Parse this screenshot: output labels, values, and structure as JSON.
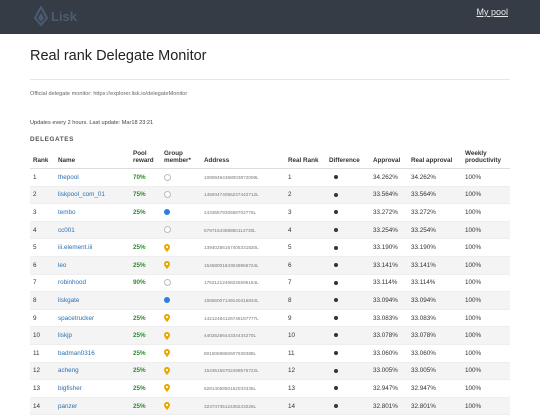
{
  "brand": {
    "name": "Lisk"
  },
  "nav": {
    "my_pool": "My pool"
  },
  "page": {
    "title": "Real rank Delegate Monitor",
    "official_note": "Official delegate monitor: https://explorer.lisk.io/delegateMonitor",
    "updates": "Updates every 2 hours. Last update: Mar18 23:21",
    "section": "DELEGATES"
  },
  "columns": {
    "rank": "Rank",
    "name": "Name",
    "pool_reward": "Pool reward",
    "group_member": "Group member*",
    "address": "Address",
    "real_rank": "Real Rank",
    "difference": "Difference",
    "approval": "Approval",
    "real_approval": "Real approval",
    "weekly_productivity": "Weekly productivity"
  },
  "delegates": [
    {
      "rank": "1",
      "name": "thepool",
      "reward": "70%",
      "group": "circle",
      "address": "10809494368003872009L",
      "real_rank": "1",
      "approval": "34.262%",
      "real_approval": "34.262%",
      "productivity": "100%"
    },
    {
      "rank": "2",
      "name": "liskpool_com_01",
      "reward": "75%",
      "group": "circle",
      "address": "14593474056247442712L",
      "real_rank": "2",
      "approval": "33.564%",
      "real_approval": "33.564%",
      "productivity": "100%"
    },
    {
      "rank": "3",
      "name": "tembo",
      "reward": "25%",
      "group": "dot",
      "address": "2433657930558702776L",
      "real_rank": "3",
      "approval": "33.272%",
      "real_approval": "33.272%",
      "productivity": "100%"
    },
    {
      "rank": "4",
      "name": "cc001",
      "reward": "",
      "group": "circle",
      "address": "6797154358850114730L",
      "real_rank": "4",
      "approval": "33.254%",
      "real_approval": "33.254%",
      "productivity": "100%"
    },
    {
      "rank": "5",
      "name": "iii.element.iii",
      "reward": "25%",
      "group": "pin",
      "address": "13940256167405331820L",
      "real_rank": "5",
      "approval": "33.190%",
      "real_approval": "33.190%",
      "productivity": "100%"
    },
    {
      "rank": "6",
      "name": "leo",
      "reward": "25%",
      "group": "pin",
      "address": "15458001843048965724L",
      "real_rank": "6",
      "approval": "33.141%",
      "real_approval": "33.141%",
      "productivity": "100%"
    },
    {
      "rank": "7",
      "name": "robinhood",
      "reward": "90%",
      "group": "circle",
      "address": "17621212458226596154L",
      "real_rank": "7",
      "approval": "33.114%",
      "real_approval": "33.114%",
      "productivity": "100%"
    },
    {
      "rank": "8",
      "name": "liskgate",
      "reward": "",
      "group": "dot",
      "address": "16556007149140416834L",
      "real_rank": "8",
      "approval": "33.094%",
      "real_approval": "33.094%",
      "productivity": "100%"
    },
    {
      "rank": "9",
      "name": "spacetrucker",
      "reward": "25%",
      "group": "pin",
      "address": "14212484126746187777L",
      "real_rank": "9",
      "approval": "33.083%",
      "real_approval": "33.083%",
      "productivity": "100%"
    },
    {
      "rank": "10",
      "name": "liskjp",
      "reward": "25%",
      "group": "pin",
      "address": "4402625644334434270L",
      "real_rank": "10",
      "approval": "33.078%",
      "real_approval": "33.078%",
      "productivity": "100%"
    },
    {
      "rank": "11",
      "name": "badman0316",
      "reward": "25%",
      "group": "pin",
      "address": "8015059860607939388L",
      "real_rank": "11",
      "approval": "33.060%",
      "real_approval": "33.060%",
      "productivity": "100%"
    },
    {
      "rank": "12",
      "name": "acheng",
      "reward": "25%",
      "group": "pin",
      "address": "15435156702499576722L",
      "real_rank": "12",
      "approval": "33.005%",
      "real_approval": "33.005%",
      "productivity": "100%"
    },
    {
      "rank": "13",
      "name": "bigfisher",
      "reward": "25%",
      "group": "pin",
      "address": "6281405850162033335L",
      "real_rank": "13",
      "approval": "32.947%",
      "real_approval": "32.947%",
      "productivity": "100%"
    },
    {
      "rank": "14",
      "name": "panzer",
      "reward": "25%",
      "group": "pin",
      "address": "3237473512436243226L",
      "real_rank": "14",
      "approval": "32.801%",
      "real_approval": "32.801%",
      "productivity": "100%"
    }
  ],
  "colors": {
    "topbar": "#363c46",
    "link": "#2a6fb0",
    "reward": "#2e8b2e",
    "member_dot": "#2f7de1",
    "pin": "#e8a800"
  },
  "icons": {
    "group_none": "circle-outline-icon",
    "group_member": "blue-dot-icon",
    "group_other": "map-pin-icon",
    "difference": "black-dot-icon"
  }
}
